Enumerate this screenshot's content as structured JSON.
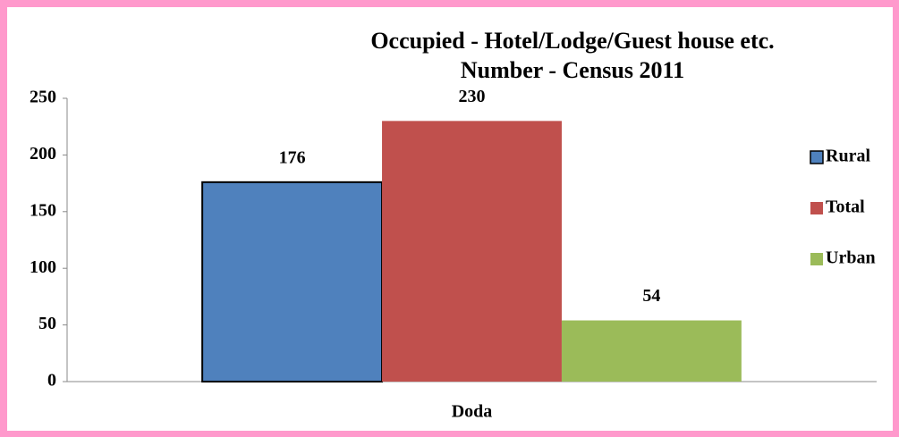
{
  "chart_data": {
    "type": "bar",
    "title": "Occupied - Hotel/Lodge/Guest house etc.",
    "subtitle": "Number - Census 2011",
    "categories": [
      "Doda"
    ],
    "series": [
      {
        "name": "Rural",
        "color": "#4f81bd",
        "outline": "#000000",
        "values": [
          176
        ]
      },
      {
        "name": "Total",
        "color": "#c0504d",
        "values": [
          230
        ]
      },
      {
        "name": "Urban",
        "color": "#9bbb59",
        "values": [
          54
        ]
      }
    ],
    "ylim": [
      0,
      250
    ],
    "yticks": [
      0,
      50,
      100,
      150,
      200,
      250
    ],
    "grid": false,
    "legend": "right"
  }
}
